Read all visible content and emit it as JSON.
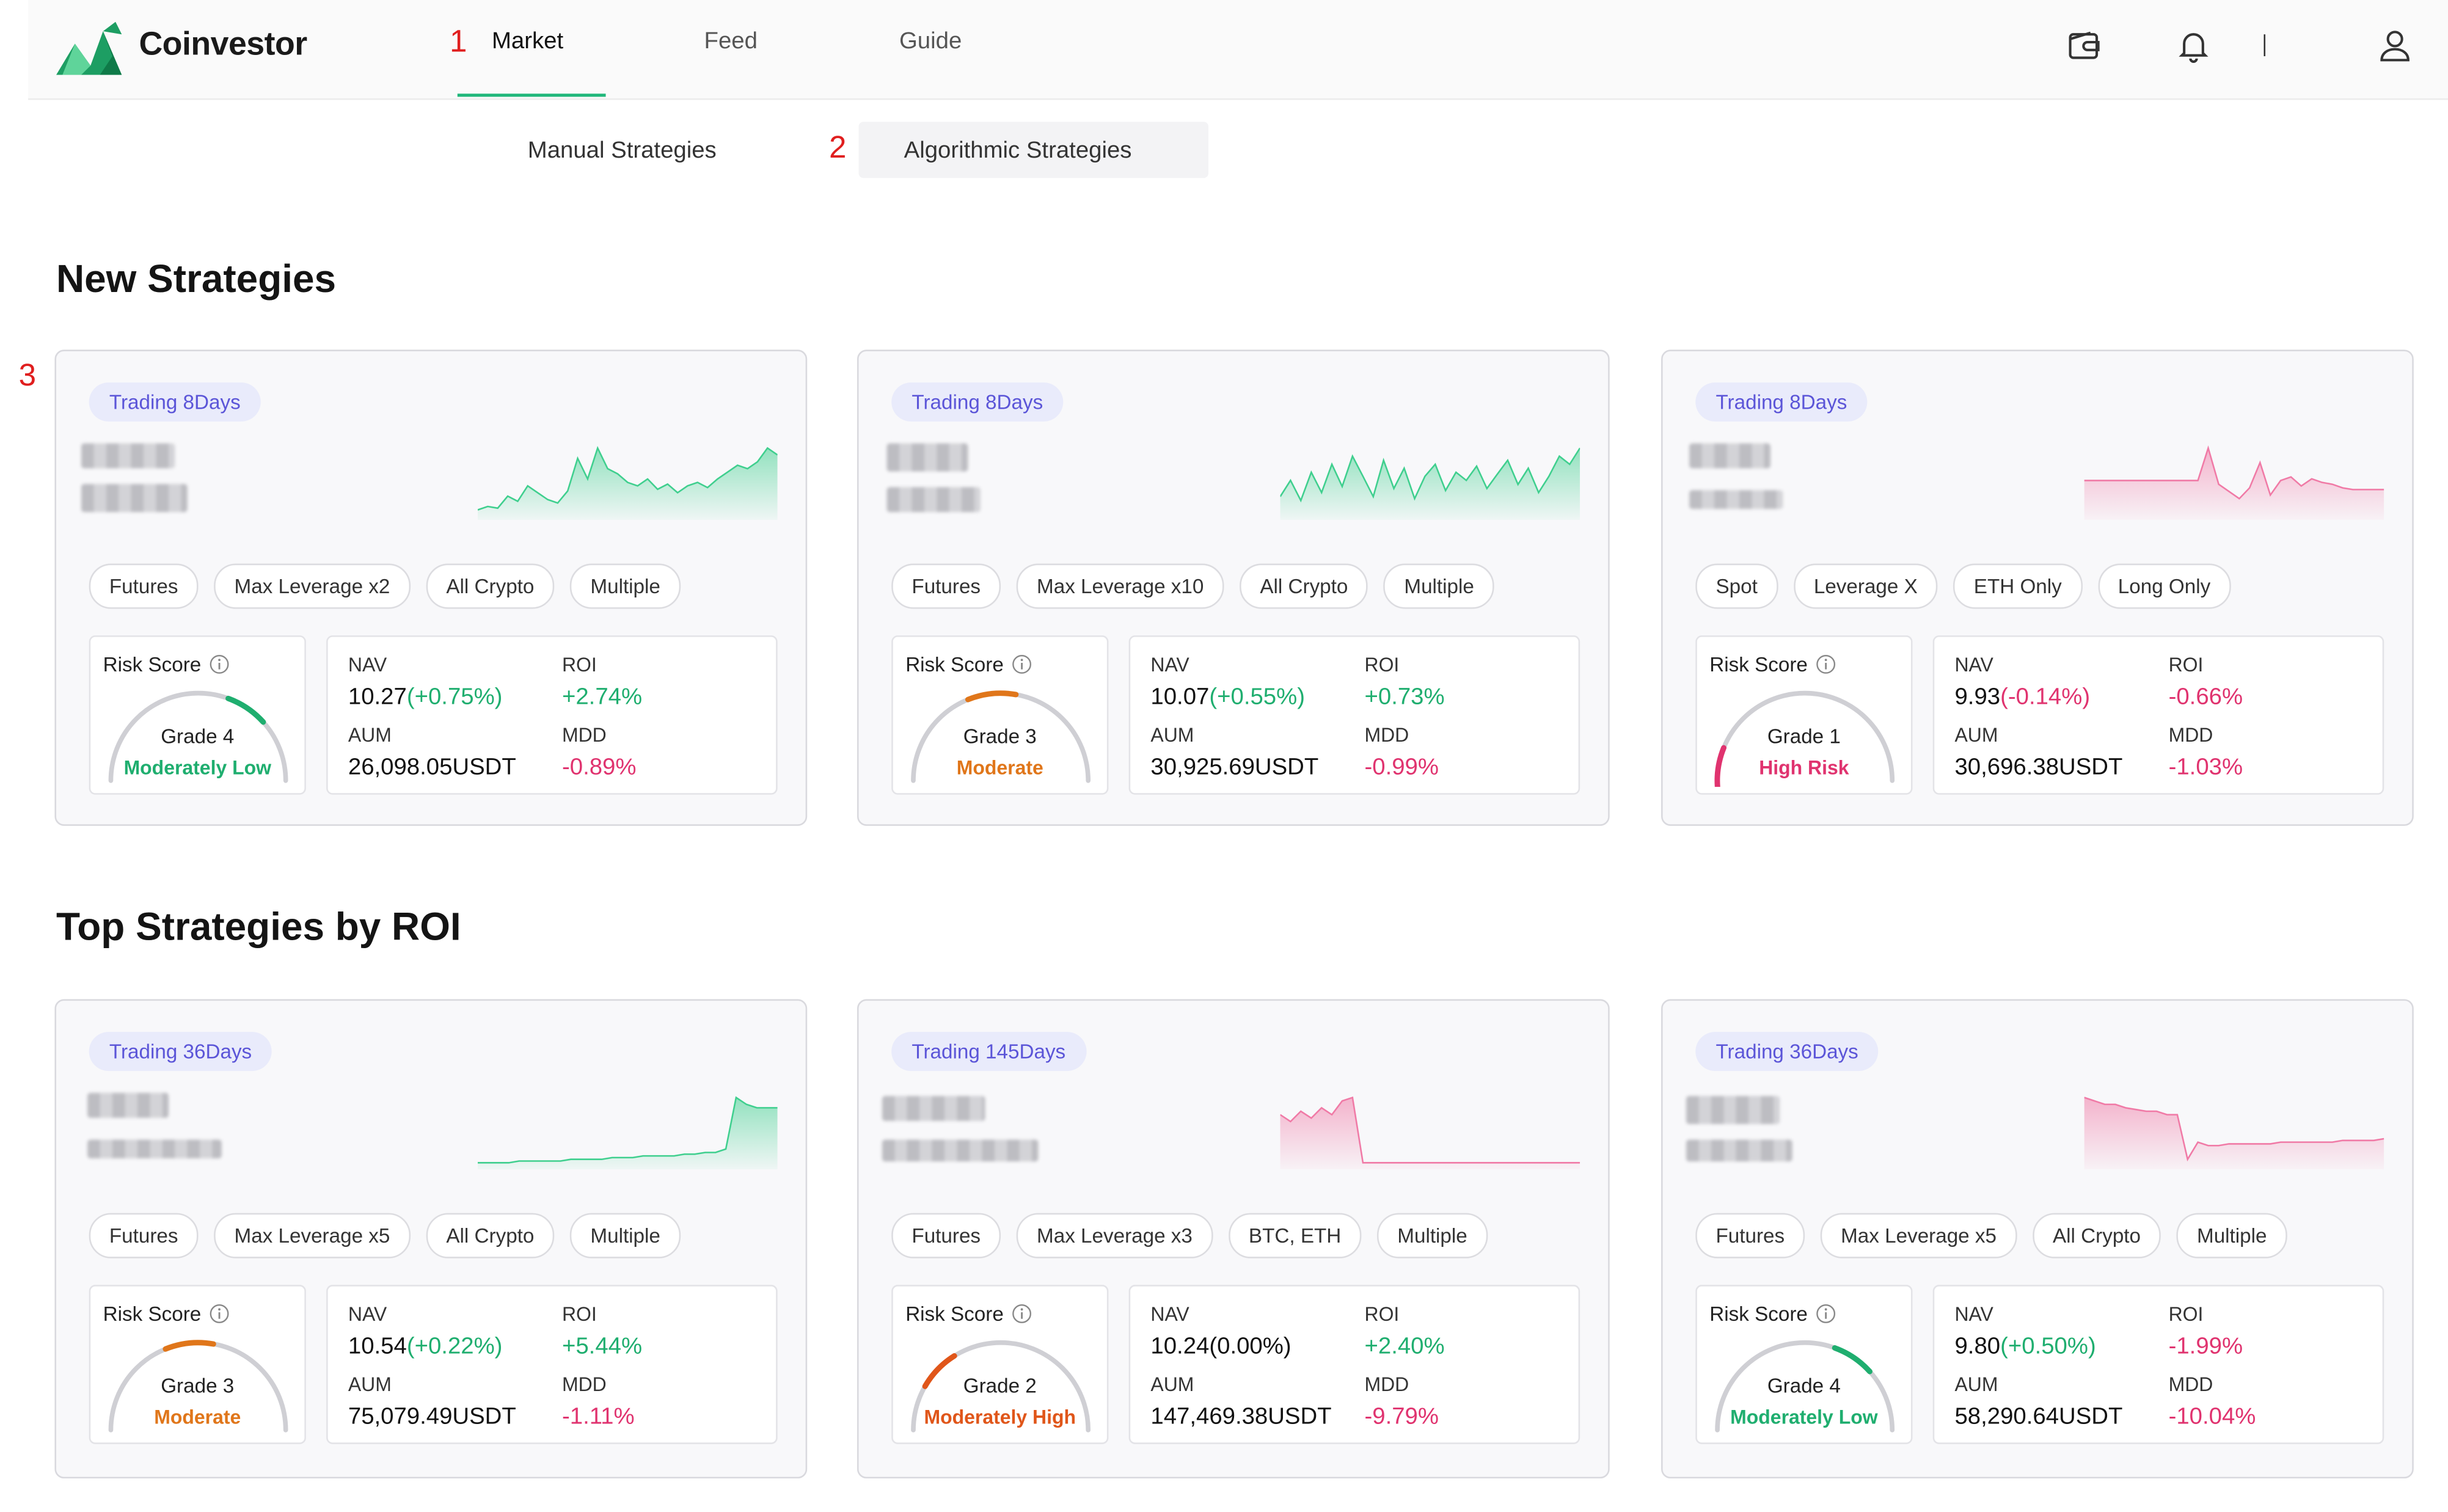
{
  "header": {
    "brand": "Coinvestor",
    "nav": [
      {
        "label": "Market",
        "active": true
      },
      {
        "label": "Feed",
        "active": false
      },
      {
        "label": "Guide",
        "active": false
      }
    ],
    "icons": [
      "wallet-icon",
      "bell-icon",
      "user-icon"
    ],
    "accent": "#20b77a"
  },
  "annotations": [
    "1",
    "2",
    "3"
  ],
  "subnav": [
    {
      "label": "Manual Strategies",
      "active": false
    },
    {
      "label": "Algorithmic Strategies",
      "active": true
    }
  ],
  "colors": {
    "up": "#1fae6f",
    "down": "#e0336f",
    "badge": "#5b55d8",
    "moderate": "#e0761a",
    "low": "#1fae6f",
    "high": "#e0336f"
  },
  "sections": [
    {
      "title": "New Strategies",
      "cards": [
        {
          "badge": "Trading 8Days",
          "trend": "up",
          "spark": [
            4,
            6,
            5,
            12,
            9,
            18,
            14,
            10,
            8,
            15,
            34,
            22,
            40,
            28,
            25,
            20,
            18,
            22,
            16,
            19,
            14,
            18,
            20,
            17,
            22,
            26,
            30,
            28,
            32,
            40,
            36
          ],
          "tags": [
            "Futures",
            "Max Leverage x2",
            "All Crypto",
            "Multiple"
          ],
          "risk": {
            "title": "Risk Score",
            "grade": "Grade 4",
            "label": "Moderately Low",
            "level": 4
          },
          "nav": {
            "label": "NAV",
            "value": "10.27",
            "change": "(+0.75%)",
            "dir": "up"
          },
          "roi": {
            "label": "ROI",
            "value": "+2.74%",
            "dir": "up"
          },
          "aum": {
            "label": "AUM",
            "value": "26,098.05USDT"
          },
          "mdd": {
            "label": "MDD",
            "value": "-0.89%",
            "dir": "down"
          }
        },
        {
          "badge": "Trading 8Days",
          "trend": "up",
          "spark": [
            10,
            18,
            8,
            22,
            12,
            26,
            15,
            30,
            20,
            10,
            28,
            14,
            24,
            9,
            20,
            26,
            13,
            22,
            18,
            25,
            14,
            21,
            28,
            16,
            24,
            12,
            20,
            30,
            26,
            34
          ],
          "tags": [
            "Futures",
            "Max Leverage x10",
            "All Crypto",
            "Multiple"
          ],
          "risk": {
            "title": "Risk Score",
            "grade": "Grade 3",
            "label": "Moderate",
            "level": 3
          },
          "nav": {
            "label": "NAV",
            "value": "10.07",
            "change": "(+0.55%)",
            "dir": "up"
          },
          "roi": {
            "label": "ROI",
            "value": "+0.73%",
            "dir": "up"
          },
          "aum": {
            "label": "AUM",
            "value": "30,925.69USDT"
          },
          "mdd": {
            "label": "MDD",
            "value": "-0.99%",
            "dir": "down"
          }
        },
        {
          "badge": "Trading 8Days",
          "trend": "down",
          "spark": [
            20,
            20,
            20,
            20,
            20,
            20,
            20,
            20,
            20,
            20,
            20,
            20,
            38,
            18,
            14,
            10,
            16,
            30,
            12,
            20,
            22,
            17,
            21,
            19,
            18,
            16,
            15,
            15,
            15,
            15
          ],
          "tags": [
            "Spot",
            "Leverage X",
            "ETH Only",
            "Long Only"
          ],
          "risk": {
            "title": "Risk Score",
            "grade": "Grade 1",
            "label": "High Risk",
            "level": 1
          },
          "nav": {
            "label": "NAV",
            "value": "9.93",
            "change": "(-0.14%)",
            "dir": "down"
          },
          "roi": {
            "label": "ROI",
            "value": "-0.66%",
            "dir": "down"
          },
          "aum": {
            "label": "AUM",
            "value": "30,696.38USDT"
          },
          "mdd": {
            "label": "MDD",
            "value": "-1.03%",
            "dir": "down"
          }
        }
      ]
    },
    {
      "title": "Top Strategies by ROI",
      "cards": [
        {
          "badge": "Trading 36Days",
          "trend": "up",
          "spark": [
            2,
            2,
            2,
            2,
            3,
            3,
            3,
            3,
            3,
            4,
            4,
            4,
            4,
            5,
            5,
            5,
            6,
            6,
            6,
            6,
            7,
            7,
            8,
            8,
            10,
            40,
            36,
            34,
            34,
            34
          ],
          "tags": [
            "Futures",
            "Max Leverage x5",
            "All Crypto",
            "Multiple"
          ],
          "risk": {
            "title": "Risk Score",
            "grade": "Grade 3",
            "label": "Moderate",
            "level": 3
          },
          "nav": {
            "label": "NAV",
            "value": "10.54",
            "change": "(+0.22%)",
            "dir": "up"
          },
          "roi": {
            "label": "ROI",
            "value": "+5.44%",
            "dir": "up"
          },
          "aum": {
            "label": "AUM",
            "value": "75,079.49USDT"
          },
          "mdd": {
            "label": "MDD",
            "value": "-1.11%",
            "dir": "down"
          }
        },
        {
          "badge": "Trading 145Days",
          "trend": "down",
          "spark": [
            30,
            26,
            32,
            28,
            34,
            30,
            38,
            40,
            2,
            2,
            2,
            2,
            2,
            2,
            2,
            2,
            2,
            2,
            2,
            2,
            2,
            2,
            2,
            2,
            2,
            2,
            2,
            2,
            2,
            2
          ],
          "tags": [
            "Futures",
            "Max Leverage x3",
            "BTC, ETH",
            "Multiple"
          ],
          "risk": {
            "title": "Risk Score",
            "grade": "Grade 2",
            "label": "Moderately High",
            "level": 2
          },
          "nav": {
            "label": "NAV",
            "value": "10.24",
            "change": "(0.00%)",
            "dir": "flat"
          },
          "roi": {
            "label": "ROI",
            "value": "+2.40%",
            "dir": "up"
          },
          "aum": {
            "label": "AUM",
            "value": "147,469.38USDT"
          },
          "mdd": {
            "label": "MDD",
            "value": "-9.79%",
            "dir": "down"
          }
        },
        {
          "badge": "Trading 36Days",
          "trend": "down",
          "spark": [
            40,
            38,
            36,
            36,
            34,
            33,
            32,
            32,
            30,
            30,
            4,
            14,
            12,
            12,
            13,
            13,
            13,
            13,
            13,
            14,
            14,
            14,
            14,
            14,
            14,
            15,
            15,
            15,
            15,
            16
          ],
          "tags": [
            "Futures",
            "Max Leverage x5",
            "All Crypto",
            "Multiple"
          ],
          "risk": {
            "title": "Risk Score",
            "grade": "Grade 4",
            "label": "Moderately Low",
            "level": 4
          },
          "nav": {
            "label": "NAV",
            "value": "9.80",
            "change": "(+0.50%)",
            "dir": "up"
          },
          "roi": {
            "label": "ROI",
            "value": "-1.99%",
            "dir": "down"
          },
          "aum": {
            "label": "AUM",
            "value": "58,290.64USDT"
          },
          "mdd": {
            "label": "MDD",
            "value": "-10.04%",
            "dir": "down"
          }
        }
      ]
    }
  ]
}
